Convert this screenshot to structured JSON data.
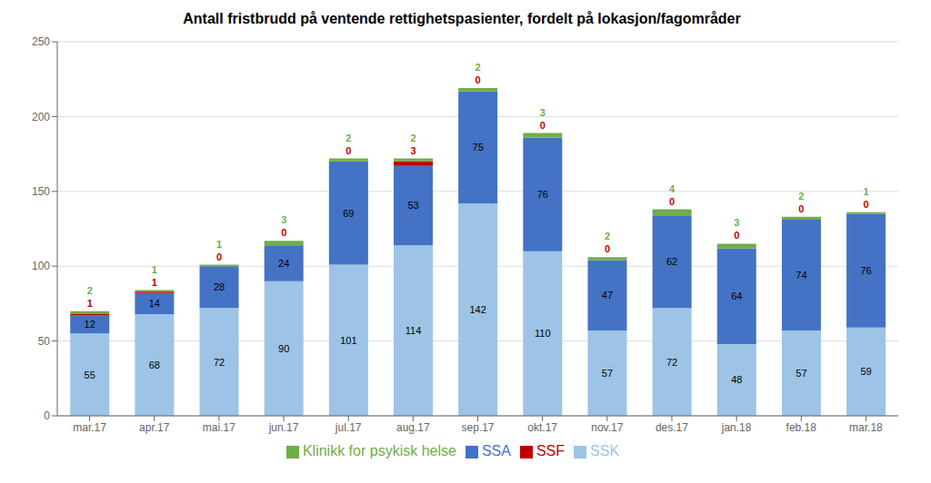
{
  "chart_data": {
    "type": "bar",
    "title": "Antall fristbrudd på ventende rettighetspasienter, fordelt på lokasjon/fagområder",
    "categories": [
      "mar.17",
      "apr.17",
      "mai.17",
      "jun.17",
      "jul.17",
      "aug.17",
      "sep.17",
      "okt.17",
      "nov.17",
      "des.17",
      "jan.18",
      "feb.18",
      "mar.18"
    ],
    "series": [
      {
        "name": "SSK",
        "color": "#9dc3e6",
        "values": [
          55,
          68,
          72,
          90,
          101,
          114,
          142,
          110,
          57,
          72,
          48,
          57,
          59
        ]
      },
      {
        "name": "SSA",
        "color": "#4472c4",
        "values": [
          12,
          14,
          28,
          24,
          69,
          53,
          75,
          76,
          47,
          62,
          64,
          74,
          76
        ]
      },
      {
        "name": "SSF",
        "color": "#c00000",
        "values": [
          1,
          1,
          0,
          0,
          0,
          3,
          0,
          0,
          0,
          0,
          0,
          0,
          0
        ]
      },
      {
        "name": "Klinikk for psykisk helse",
        "color": "#70ad47",
        "values": [
          2,
          1,
          1,
          3,
          2,
          2,
          2,
          3,
          2,
          4,
          3,
          2,
          1
        ]
      }
    ],
    "stacked": true,
    "data_labels": true,
    "ylim": [
      0,
      250
    ],
    "yticks": [
      0,
      50,
      100,
      150,
      200,
      250
    ],
    "grid": true,
    "legend": "bottom"
  }
}
